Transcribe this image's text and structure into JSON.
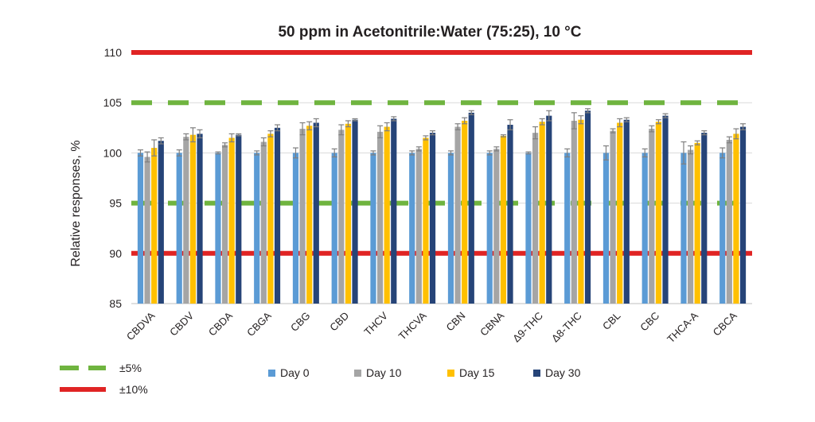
{
  "chart_data": {
    "type": "bar",
    "title": "50 ppm in Acetonitrile:Water (75:25), 10 °C",
    "ylabel": "Relative responses, %",
    "xlabel": "",
    "ylim": [
      85,
      110
    ],
    "yticks": [
      85,
      90,
      95,
      100,
      105,
      110
    ],
    "categories": [
      "CBDVA",
      "CBDV",
      "CBDA",
      "CBGA",
      "CBG",
      "CBD",
      "THCV",
      "THCVA",
      "CBN",
      "CBNA",
      "Δ9-THC",
      "Δ8-THC",
      "CBL",
      "CBC",
      "THCA-A",
      "CBCA"
    ],
    "series": [
      {
        "name": "Day 0",
        "color": "#5b9bd5",
        "values": [
          100,
          100,
          100,
          100,
          100,
          100,
          100,
          100,
          100,
          100,
          100,
          100,
          100,
          100,
          100,
          100
        ],
        "errors": [
          0.3,
          0.3,
          0.1,
          0.2,
          0.5,
          0.4,
          0.2,
          0.2,
          0.2,
          0.2,
          0.1,
          0.4,
          0.7,
          0.4,
          1.1,
          0.5
        ]
      },
      {
        "name": "Day 10",
        "color": "#a5a5a5",
        "values": [
          99.6,
          101.6,
          100.8,
          101.1,
          102.4,
          102.3,
          102.1,
          100.4,
          102.6,
          100.4,
          102.0,
          103.2,
          102.2,
          102.4,
          100.3,
          101.3
        ],
        "errors": [
          0.5,
          0.3,
          0.2,
          0.4,
          0.6,
          0.5,
          0.6,
          0.2,
          0.3,
          0.2,
          0.6,
          0.8,
          0.2,
          0.3,
          0.4,
          0.3
        ]
      },
      {
        "name": "Day 15",
        "color": "#ffc000",
        "values": [
          100.5,
          101.8,
          101.5,
          101.9,
          102.7,
          102.9,
          102.6,
          101.5,
          103.2,
          101.7,
          103.1,
          103.3,
          103.0,
          103.1,
          101.0,
          101.9
        ],
        "errors": [
          0.8,
          0.7,
          0.4,
          0.3,
          0.4,
          0.3,
          0.4,
          0.2,
          0.3,
          0.1,
          0.3,
          0.4,
          0.4,
          0.2,
          0.2,
          0.5
        ]
      },
      {
        "name": "Day 30",
        "color": "#264478",
        "values": [
          101.2,
          101.9,
          101.8,
          102.5,
          103.0,
          103.3,
          103.4,
          102.0,
          104.0,
          102.8,
          103.7,
          104.2,
          103.3,
          103.7,
          102.0,
          102.6
        ],
        "errors": [
          0.3,
          0.4,
          0.1,
          0.3,
          0.4,
          0.1,
          0.2,
          0.2,
          0.2,
          0.5,
          0.5,
          0.2,
          0.2,
          0.2,
          0.2,
          0.3
        ]
      }
    ],
    "reference_lines": [
      {
        "value": 110,
        "style": "solid",
        "color": "#e02424",
        "legend": "±10%"
      },
      {
        "value": 105,
        "style": "dashed",
        "color": "#6fb43f",
        "legend": "±5%"
      },
      {
        "value": 95,
        "style": "dashed",
        "color": "#6fb43f",
        "legend": "±5%"
      },
      {
        "value": 90,
        "style": "solid",
        "color": "#e02424",
        "legend": "±10%"
      }
    ],
    "legend": {
      "series_placement": "bottom",
      "lines": [
        {
          "label": "±5%",
          "style": "dashed",
          "color": "#6fb43f"
        },
        {
          "label": "±10%",
          "style": "solid",
          "color": "#e02424"
        }
      ]
    },
    "grid": true,
    "gridline_color": "#d9d9d9",
    "errorbar_color": "#7f7f7f"
  }
}
